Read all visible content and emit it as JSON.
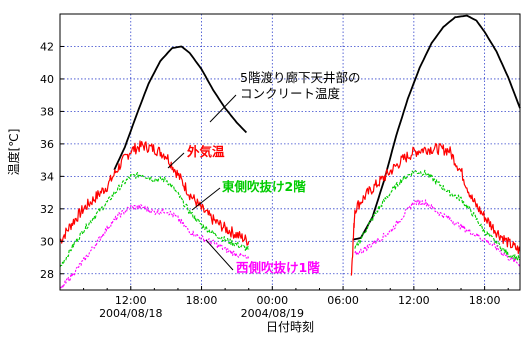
{
  "chart_data": {
    "type": "line",
    "title": "",
    "xlabel": "日付時刻",
    "ylabel": "温度[℃]",
    "ylim": [
      27,
      44
    ],
    "y_ticks": [
      "28",
      "30",
      "32",
      "34",
      "36",
      "38",
      "40",
      "42"
    ],
    "x_range_hours": [
      6,
      45
    ],
    "x_tick_labels": [
      {
        "hour": 12,
        "label": "12:00",
        "date": "2004/08/18"
      },
      {
        "hour": 18,
        "label": "18:00",
        "date": ""
      },
      {
        "hour": 24,
        "label": "00:00",
        "date": "2004/08/19"
      },
      {
        "hour": 30,
        "label": "06:00",
        "date": ""
      },
      {
        "hour": 36,
        "label": "12:00",
        "date": ""
      },
      {
        "hour": 42,
        "label": "18:00",
        "date": ""
      }
    ],
    "grid": true,
    "legend": "none",
    "annotations": [
      {
        "text": "5階渡り廊下天井部の",
        "series": "concrete",
        "color": "#000000"
      },
      {
        "text": "コンクリート温度",
        "series": "concrete",
        "color": "#000000"
      },
      {
        "text": "外気温",
        "series": "outdoor",
        "color": "#ff0000"
      },
      {
        "text": "東側吹抜け2階",
        "series": "east",
        "color": "#00cc00"
      },
      {
        "text": "西側吹抜け1階",
        "series": "west",
        "color": "#ff00ff"
      }
    ],
    "series": [
      {
        "key": "concrete",
        "color": "#000000",
        "segments": [
          {
            "x": [
              10.6,
              11.5,
              12.5,
              13.5,
              14.5,
              15.5,
              16.3,
              17,
              18,
              19,
              20,
              21,
              21.8
            ],
            "y": [
              34.4,
              35.8,
              37.8,
              39.7,
              41.1,
              41.9,
              42.0,
              41.6,
              40.6,
              39.3,
              38.2,
              37.3,
              36.7
            ]
          },
          {
            "x": [
              30.8,
              31.5,
              32.5,
              33.5,
              34.5,
              35.5,
              36.5,
              37.5,
              38.5,
              39.5,
              40.5,
              41.3,
              42,
              43,
              44,
              45
            ],
            "y": [
              30.1,
              30.2,
              31.5,
              33.8,
              36.5,
              38.8,
              40.7,
              42.2,
              43.2,
              43.8,
              43.9,
              43.6,
              42.9,
              41.7,
              40.1,
              38.2
            ]
          }
        ]
      },
      {
        "key": "outdoor",
        "color": "#ff0000",
        "segments": [
          {
            "x": [
              6,
              7,
              8,
              9,
              10,
              11,
              12,
              13,
              14,
              15,
              16,
              17,
              18,
              19,
              20,
              21,
              22
            ],
            "y": [
              30.0,
              31.1,
              32.0,
              32.7,
              33.4,
              34.6,
              35.6,
              35.9,
              35.7,
              35.3,
              34.1,
              32.9,
              32.0,
              31.3,
              30.8,
              30.4,
              30.0
            ]
          },
          {
            "x": [
              30.7,
              31,
              32,
              33,
              34,
              35,
              36,
              37,
              38,
              39,
              40,
              41,
              42,
              43,
              44,
              45
            ],
            "y": [
              27.9,
              32.0,
              32.9,
              33.6,
              34.3,
              35.0,
              35.5,
              35.7,
              35.7,
              35.6,
              34.3,
              32.5,
              31.5,
              30.6,
              29.9,
              29.4
            ]
          }
        ]
      },
      {
        "key": "east",
        "color": "#00cc00",
        "segments": [
          {
            "x": [
              6,
              7,
              8,
              9,
              10,
              11,
              12,
              13,
              14,
              15,
              16,
              17,
              18,
              19,
              20,
              21,
              22
            ],
            "y": [
              28.4,
              29.6,
              30.7,
              31.6,
              32.4,
              33.3,
              34.0,
              34.1,
              33.8,
              33.8,
              32.9,
              31.8,
              31.0,
              30.5,
              30.1,
              29.8,
              29.5
            ]
          },
          {
            "x": [
              31,
              32,
              33,
              34,
              35,
              36,
              37,
              38,
              39,
              40,
              41,
              42,
              43,
              44,
              45
            ],
            "y": [
              29.5,
              30.8,
              32.0,
              33.0,
              33.8,
              34.3,
              34.2,
              33.6,
              33.0,
              32.6,
              31.7,
              30.6,
              29.9,
              29.2,
              28.9
            ]
          }
        ]
      },
      {
        "key": "west",
        "color": "#ff00ff",
        "segments": [
          {
            "x": [
              6,
              7,
              8,
              9,
              10,
              11,
              12,
              13,
              14,
              15,
              16,
              17,
              18,
              19,
              20,
              21,
              22
            ],
            "y": [
              27.0,
              27.9,
              28.8,
              29.8,
              30.8,
              31.6,
              32.1,
              32.1,
              31.8,
              31.9,
              31.4,
              30.6,
              30.2,
              29.9,
              29.5,
              29.2,
              28.9
            ]
          },
          {
            "x": [
              31,
              32,
              33,
              34,
              35,
              36,
              37,
              38,
              39,
              40,
              41,
              42,
              43,
              44,
              45
            ],
            "y": [
              29.2,
              29.6,
              30.1,
              30.6,
              31.5,
              32.4,
              32.4,
              31.8,
              31.4,
              30.9,
              30.5,
              30.1,
              29.6,
              29.0,
              28.6
            ]
          }
        ]
      }
    ]
  }
}
